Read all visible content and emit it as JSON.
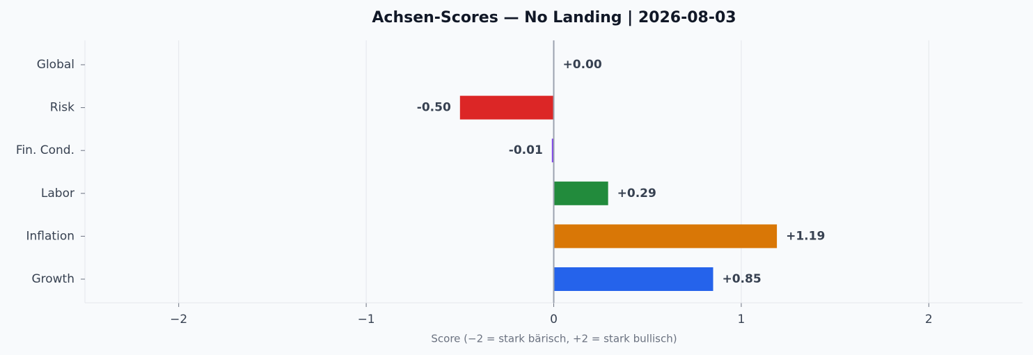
{
  "chart_data": {
    "type": "barh",
    "title": "Achsen-Scores — No Landing | 2026-08-03",
    "xlabel": "Score (−2 = stark bärisch, +2 = stark bullisch)",
    "categories": [
      "Global",
      "Risk",
      "Fin. Cond.",
      "Labor",
      "Inflation",
      "Growth"
    ],
    "values": [
      0.0,
      -0.5,
      -0.01,
      0.29,
      1.19,
      0.85
    ],
    "value_labels": [
      "+0.00",
      "-0.50",
      "-0.01",
      "+0.29",
      "+1.19",
      "+0.85"
    ],
    "colors": [
      "#6b7280",
      "#dc2626",
      "#7c3aed",
      "#228b3c",
      "#d97706",
      "#2563eb"
    ],
    "xlim": [
      -2.5,
      2.5
    ],
    "xticks": [
      {
        "value": -2,
        "label": "−2"
      },
      {
        "value": -1,
        "label": "−1"
      },
      0,
      1,
      2
    ],
    "grid": true
  }
}
